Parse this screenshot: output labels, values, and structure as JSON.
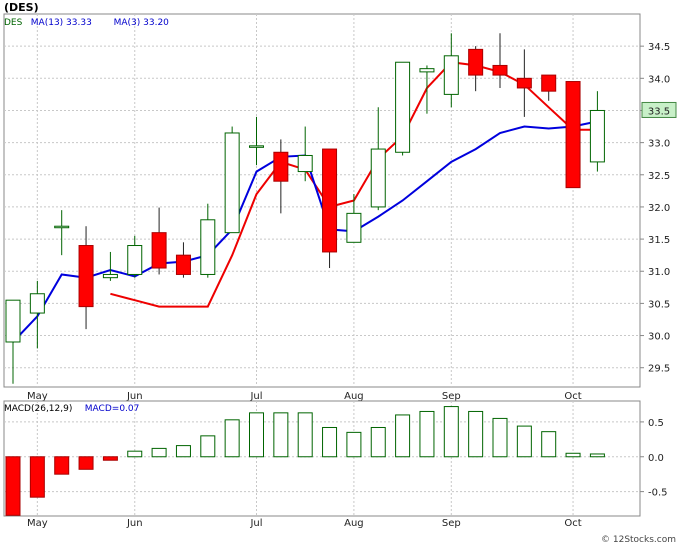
{
  "chart_data": [
    {
      "type": "candlestick",
      "title": "(DES)",
      "legend": [
        {
          "label": "DES",
          "color": "#006400"
        },
        {
          "label": "MA(13)",
          "value": "33.33",
          "color": "#0000cc"
        },
        {
          "label": "MA(3)",
          "value": "33.20",
          "color": "#0000cc"
        }
      ],
      "last_price_label": "33.5",
      "ylim": [
        29.2,
        35.0
      ],
      "y_ticks": [
        "29.5",
        "30.0",
        "30.5",
        "31.0",
        "31.5",
        "32.0",
        "32.5",
        "33.0",
        "33.5",
        "34.0",
        "34.5"
      ],
      "x_ticks": [
        {
          "label": "May",
          "index": 1
        },
        {
          "label": "Jun",
          "index": 5
        },
        {
          "label": "Jul",
          "index": 10
        },
        {
          "label": "Aug",
          "index": 14
        },
        {
          "label": "Sep",
          "index": 18
        },
        {
          "label": "Oct",
          "index": 23
        }
      ],
      "candles": [
        {
          "open": 29.9,
          "high": 30.55,
          "low": 29.25,
          "close": 30.55
        },
        {
          "open": 30.35,
          "high": 30.85,
          "low": 29.8,
          "close": 30.65
        },
        {
          "open": 31.7,
          "high": 31.95,
          "low": 31.25,
          "close": 31.7
        },
        {
          "open": 31.4,
          "high": 31.7,
          "low": 30.1,
          "close": 30.45
        },
        {
          "open": 30.9,
          "high": 31.3,
          "low": 30.85,
          "close": 30.95
        },
        {
          "open": 30.95,
          "high": 31.55,
          "low": 30.9,
          "close": 31.4
        },
        {
          "open": 31.6,
          "high": 31.99,
          "low": 30.95,
          "close": 31.05
        },
        {
          "open": 31.25,
          "high": 31.45,
          "low": 30.9,
          "close": 30.95
        },
        {
          "open": 30.95,
          "high": 32.05,
          "low": 30.9,
          "close": 31.8
        },
        {
          "open": 31.6,
          "high": 33.25,
          "low": 31.6,
          "close": 33.15
        },
        {
          "open": 32.95,
          "high": 33.4,
          "low": 32.65,
          "close": 32.95
        },
        {
          "open": 32.85,
          "high": 33.05,
          "low": 31.9,
          "close": 32.4
        },
        {
          "open": 32.55,
          "high": 33.25,
          "low": 32.4,
          "close": 32.8
        },
        {
          "open": 32.9,
          "high": 32.9,
          "low": 31.05,
          "close": 31.3
        },
        {
          "open": 31.45,
          "high": 32.2,
          "low": 31.45,
          "close": 31.9
        },
        {
          "open": 32.0,
          "high": 33.55,
          "low": 31.95,
          "close": 32.9
        },
        {
          "open": 32.85,
          "high": 34.25,
          "low": 32.8,
          "close": 34.25
        },
        {
          "open": 34.1,
          "high": 34.2,
          "low": 33.45,
          "close": 34.15
        },
        {
          "open": 33.75,
          "high": 34.7,
          "low": 33.55,
          "close": 34.35
        },
        {
          "open": 34.45,
          "high": 34.5,
          "low": 33.8,
          "close": 34.05
        },
        {
          "open": 34.2,
          "high": 34.7,
          "low": 33.85,
          "close": 34.05
        },
        {
          "open": 34.0,
          "high": 34.45,
          "low": 33.4,
          "close": 33.85
        },
        {
          "open": 34.05,
          "high": 34.05,
          "low": 33.65,
          "close": 33.8
        },
        {
          "open": 33.95,
          "high": 33.95,
          "low": 32.3,
          "close": 32.3
        },
        {
          "open": 32.7,
          "high": 33.8,
          "low": 32.55,
          "close": 33.5
        }
      ],
      "ma13": [
        29.9,
        30.3,
        30.95,
        30.9,
        31.02,
        30.92,
        31.12,
        31.15,
        31.25,
        31.65,
        32.55,
        32.78,
        32.8,
        31.65,
        31.62,
        31.85,
        32.1,
        32.4,
        32.7,
        32.9,
        33.15,
        33.25,
        33.22,
        33.25,
        33.33
      ],
      "ma3": [
        null,
        null,
        null,
        null,
        30.65,
        30.55,
        30.45,
        30.45,
        30.45,
        31.25,
        32.2,
        32.7,
        32.58,
        32.0,
        32.1,
        32.75,
        33.1,
        33.85,
        34.25,
        34.2,
        34.1,
        33.9,
        33.55,
        33.2,
        33.2
      ]
    },
    {
      "type": "bar",
      "title": "MACD(26,12,9)",
      "legend": [
        {
          "label": "MACD(26,12,9)",
          "color": "#000000"
        },
        {
          "label": "MACD=0.07",
          "color": "#0000cc"
        }
      ],
      "ylim": [
        -0.85,
        0.8
      ],
      "y_ticks": [
        "0.5",
        "0.0",
        "-0.5"
      ],
      "values": [
        -0.84,
        -0.58,
        -0.25,
        -0.18,
        -0.05,
        0.08,
        0.12,
        0.16,
        0.3,
        0.53,
        0.63,
        0.63,
        0.63,
        0.42,
        0.35,
        0.42,
        0.6,
        0.65,
        0.72,
        0.65,
        0.55,
        0.44,
        0.36,
        0.05,
        0.04
      ]
    }
  ],
  "watermark": "© 12Stocks.com"
}
